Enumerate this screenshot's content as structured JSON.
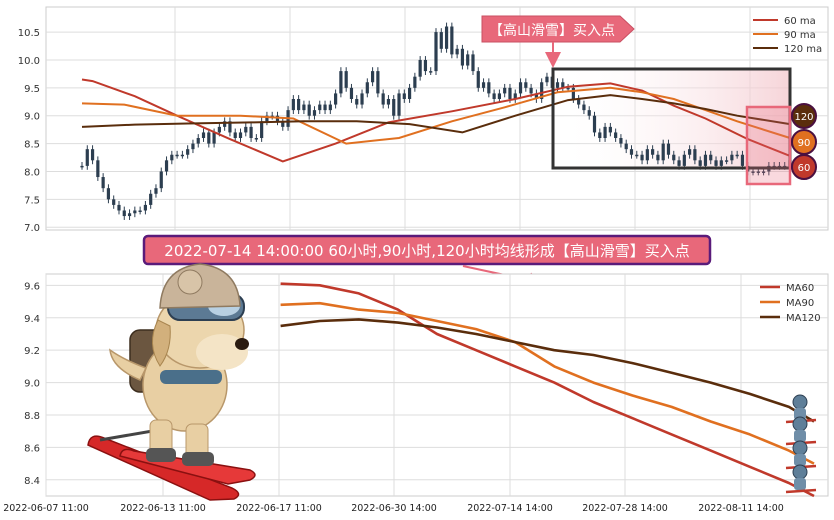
{
  "colors": {
    "ma60": "#c0392b",
    "ma90": "#e07020",
    "ma120": "#5a2d0c",
    "candle": "#2c3e50",
    "callout_bg": "#e8687a",
    "callout_border": "#5a1b7a",
    "highlight_box": "#333333",
    "pink_box": "#e8687a"
  },
  "chart_data": [
    {
      "type": "line",
      "subtype": "candlestick_with_moving_averages",
      "ylim": [
        6.95,
        10.95
      ],
      "yticks": [
        7.0,
        7.5,
        8.0,
        8.5,
        9.0,
        9.5,
        10.0,
        10.5
      ],
      "ytick_labels": [
        "7.0",
        "7.5",
        "8.0",
        "8.5",
        "9.0",
        "9.5",
        "10.0",
        "10.5"
      ],
      "grid": true,
      "legend_position": "top-right",
      "n_points": 135,
      "candles_close": [
        8.1,
        8.4,
        8.2,
        7.9,
        7.7,
        7.5,
        7.4,
        7.3,
        7.2,
        7.25,
        7.3,
        7.3,
        7.4,
        7.6,
        7.7,
        8.0,
        8.2,
        8.3,
        8.3,
        8.3,
        8.4,
        8.5,
        8.6,
        8.7,
        8.5,
        8.7,
        8.8,
        8.9,
        8.7,
        8.6,
        8.7,
        8.8,
        8.6,
        8.6,
        8.9,
        9.0,
        9.0,
        8.9,
        8.8,
        9.1,
        9.3,
        9.1,
        9.2,
        9.0,
        9.1,
        9.2,
        9.1,
        9.2,
        9.4,
        9.8,
        9.5,
        9.3,
        9.2,
        9.4,
        9.6,
        9.8,
        9.4,
        9.2,
        9.3,
        9.0,
        9.4,
        9.3,
        9.5,
        9.7,
        10.0,
        9.8,
        9.8,
        10.5,
        10.2,
        10.6,
        10.1,
        10.2,
        9.9,
        10.1,
        9.8,
        9.5,
        9.6,
        9.4,
        9.3,
        9.4,
        9.5,
        9.3,
        9.4,
        9.6,
        9.5,
        9.4,
        9.3,
        9.6,
        9.7,
        9.5,
        9.6,
        9.5,
        9.5,
        9.3,
        9.2,
        9.1,
        9.0,
        8.7,
        8.6,
        8.8,
        8.7,
        8.6,
        8.5,
        8.4,
        8.3,
        8.3,
        8.2,
        8.4,
        8.3,
        8.2,
        8.5,
        8.3,
        8.2,
        8.1,
        8.3,
        8.4,
        8.2,
        8.1,
        8.3,
        8.2,
        8.1,
        8.2,
        8.2,
        8.3,
        8.3,
        8.1,
        8.0,
        8.0,
        8.0,
        8.0,
        8.1,
        8.1,
        8.1,
        8.1,
        8.2
      ],
      "series": [
        {
          "name": "60 ma",
          "x": [
            0,
            2,
            10,
            18,
            28,
            38,
            48,
            58,
            70,
            82,
            92,
            100,
            106,
            112,
            118,
            126,
            134
          ],
          "values": [
            9.65,
            9.62,
            9.35,
            9.0,
            8.58,
            8.18,
            8.5,
            8.88,
            9.08,
            9.3,
            9.52,
            9.58,
            9.45,
            9.18,
            8.95,
            8.58,
            8.28
          ]
        },
        {
          "name": "90 ma",
          "x": [
            0,
            8,
            18,
            30,
            40,
            50,
            60,
            70,
            80,
            90,
            100,
            106,
            112,
            118,
            124,
            134
          ],
          "values": [
            9.22,
            9.2,
            9.0,
            9.0,
            8.95,
            8.5,
            8.6,
            8.9,
            9.15,
            9.42,
            9.5,
            9.42,
            9.3,
            9.1,
            8.9,
            8.6
          ]
        },
        {
          "name": "120 ma",
          "x": [
            0,
            10,
            20,
            32,
            42,
            52,
            62,
            72,
            82,
            92,
            100,
            106,
            112,
            118,
            124,
            134
          ],
          "values": [
            8.8,
            8.84,
            8.86,
            8.88,
            8.9,
            8.9,
            8.85,
            8.7,
            9.0,
            9.28,
            9.37,
            9.3,
            9.22,
            9.12,
            9.0,
            8.85
          ]
        }
      ],
      "end_badges": [
        "120",
        "90",
        "60"
      ],
      "annotation": "【高山滑雪】买入点"
    },
    {
      "type": "line",
      "ylim": [
        8.3,
        9.67
      ],
      "yticks": [
        8.4,
        8.6,
        8.8,
        9.0,
        9.2,
        9.4,
        9.6
      ],
      "ytick_labels": [
        "8.4",
        "8.6",
        "8.8",
        "9.0",
        "9.2",
        "9.4",
        "9.6"
      ],
      "x_tick_labels": [
        "2022-06-07 11:00",
        "2022-06-13 11:00",
        "2022-06-17 11:00",
        "2022-06-30 14:00",
        "2022-07-14 14:00",
        "2022-07-28 14:00",
        "2022-08-11 14:00"
      ],
      "grid": true,
      "legend_position": "top-right",
      "series": [
        {
          "name": "MA60",
          "x": [
            0.3,
            0.35,
            0.4,
            0.45,
            0.5,
            0.55,
            0.6,
            0.65,
            0.7,
            0.75,
            0.8,
            0.85,
            0.9,
            0.95,
            1.0
          ],
          "values": [
            9.61,
            9.6,
            9.55,
            9.45,
            9.3,
            9.2,
            9.1,
            9.0,
            8.88,
            8.78,
            8.68,
            8.58,
            8.48,
            8.38,
            8.3
          ]
        },
        {
          "name": "MA90",
          "x": [
            0.3,
            0.35,
            0.4,
            0.45,
            0.5,
            0.55,
            0.6,
            0.65,
            0.7,
            0.75,
            0.8,
            0.85,
            0.9,
            0.95,
            1.0
          ],
          "values": [
            9.48,
            9.49,
            9.45,
            9.43,
            9.38,
            9.33,
            9.25,
            9.1,
            9.0,
            8.92,
            8.85,
            8.76,
            8.68,
            8.58,
            8.5
          ]
        },
        {
          "name": "MA120",
          "x": [
            0.3,
            0.35,
            0.4,
            0.45,
            0.5,
            0.55,
            0.6,
            0.65,
            0.7,
            0.75,
            0.8,
            0.85,
            0.9,
            0.95,
            1.0
          ],
          "values": [
            9.35,
            9.38,
            9.39,
            9.37,
            9.34,
            9.3,
            9.25,
            9.2,
            9.17,
            9.12,
            9.06,
            9.0,
            8.93,
            8.85,
            8.76
          ]
        }
      ]
    }
  ],
  "banner": "2022-07-14 14:00:00 60小时,90小时,120小时均线形成【高山滑雪】买入点"
}
